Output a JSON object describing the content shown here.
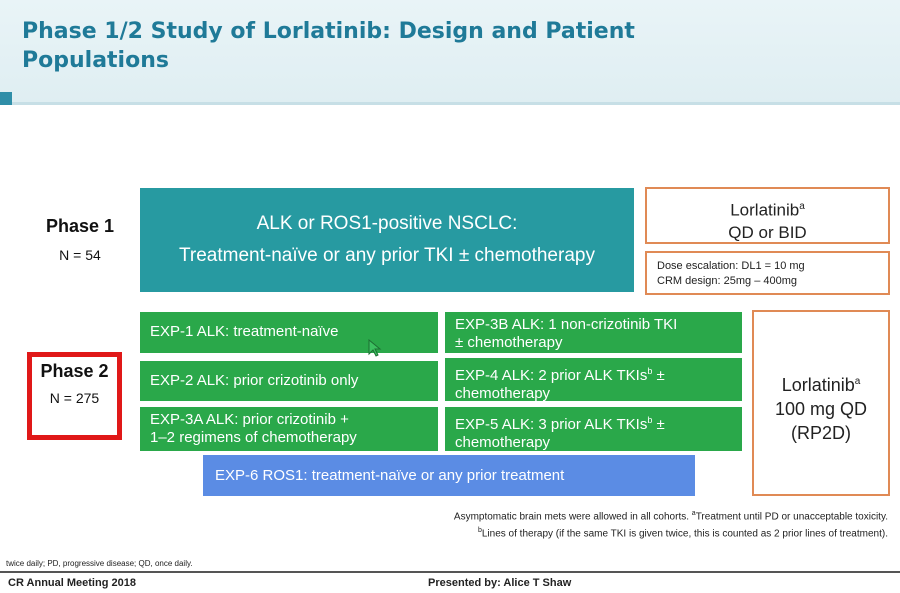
{
  "header": {
    "title": "Phase 1/2 Study of Lorlatinib: Design and Patient Populations"
  },
  "phase1": {
    "label": "Phase 1",
    "n": "N = 54"
  },
  "phase2": {
    "label": "Phase 2",
    "n": "N = 275"
  },
  "nsclc_box": {
    "line1": "ALK or ROS1-positive NSCLC:",
    "line2": "Treatment-naïve or any prior TKI ± chemotherapy"
  },
  "lorlatinib_phase1": {
    "line1": "Lorlatinib",
    "sup": "a",
    "line2": "QD or BID"
  },
  "dose_box": {
    "line1": "Dose escalation: DL1 = 10 mg",
    "line2": "CRM design:  25mg – 400mg"
  },
  "lorlatinib_phase2": {
    "line1": "Lorlatinib",
    "sup": "a",
    "line2": "100 mg QD",
    "line3": "(RP2D)"
  },
  "cohorts": {
    "exp1": {
      "label": "EXP-1  ALK: treatment-naïve"
    },
    "exp2": {
      "label": "EXP-2  ALK: prior crizotinib only"
    },
    "exp3a": {
      "line1": "EXP-3A  ALK: prior crizotinib +",
      "line2": "1–2 regimens of chemotherapy"
    },
    "exp3b": {
      "line1": "EXP-3B  ALK: 1 non-crizotinib TKI",
      "line2": "± chemotherapy"
    },
    "exp4": {
      "line1": "EXP-4  ALK: 2 prior ALK TKIs",
      "sup": "b",
      "after": " ±",
      "line2": "chemotherapy"
    },
    "exp5": {
      "line1": "EXP-5  ALK: 3 prior ALK TKIs",
      "sup": "b",
      "after": " ±",
      "line2": "chemotherapy"
    },
    "exp6": {
      "label": "EXP-6 ROS1: treatment-naïve or any prior treatment"
    }
  },
  "footnotes": {
    "line1a": "Asymptomatic brain mets were allowed in all cohorts. ",
    "sup_a": "a",
    "line1b": "Treatment until PD or unacceptable toxicity.",
    "sup_b": "b",
    "line2": "Lines of therapy (if the same TKI is given twice, this is counted as 2 prior lines of treatment).",
    "abbrev": "twice daily; PD, progressive disease; QD, once daily."
  },
  "footer": {
    "meeting": "CR Annual Meeting 2018",
    "presenter": "Presented by: Alice T Shaw"
  }
}
